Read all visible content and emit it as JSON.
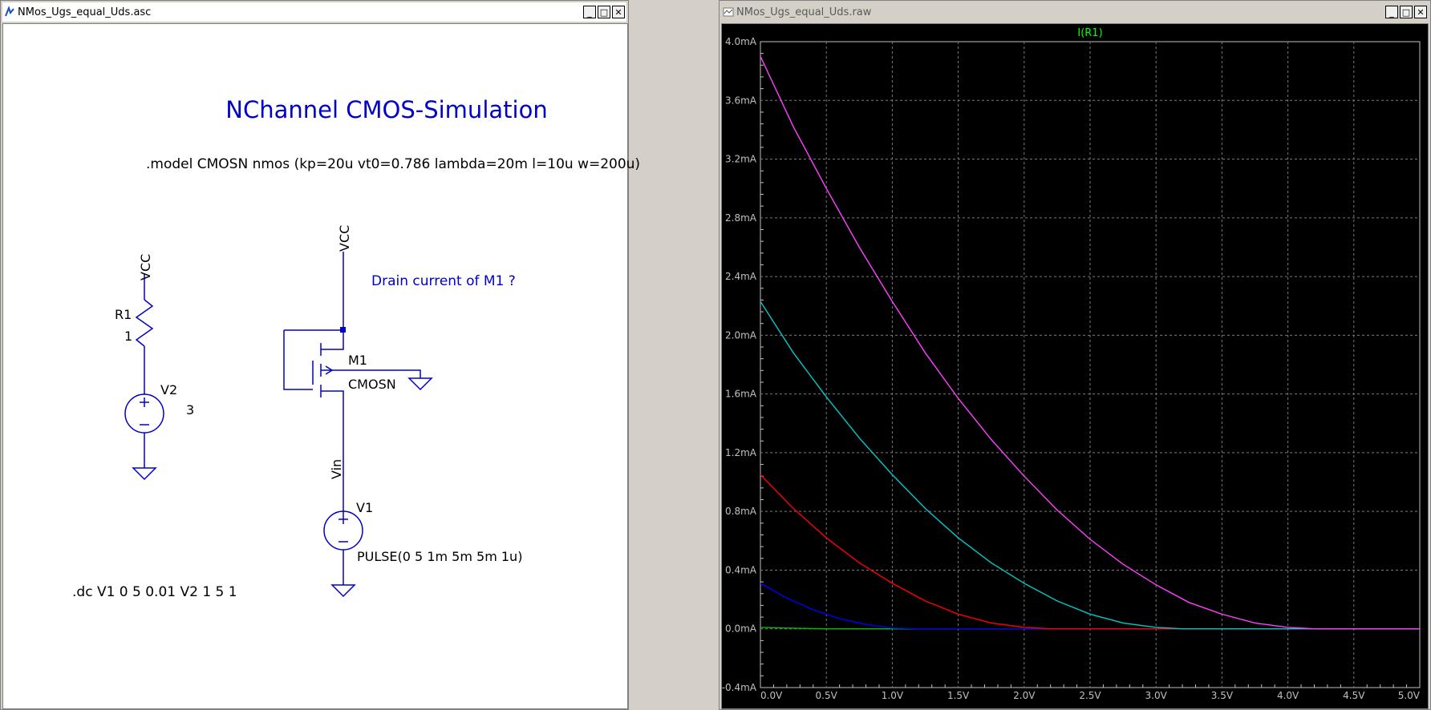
{
  "schematic_window": {
    "title": "NMos_Ugs_equal_Uds.asc",
    "icon": "ltspice-schematic-icon",
    "buttons": {
      "minimize": "_",
      "maximize": "□",
      "close": "✕"
    },
    "heading": "NChannel CMOS-Simulation",
    "model_directive": ".model CMOSN nmos (kp=20u vt0=0.786 lambda=20m l=10u w=200u)",
    "question_text": "Drain current of M1 ?",
    "dc_directive": ".dc V1 0 5 0.01 V2 1 5 1",
    "left_vcc_label": "VCC",
    "r1_name": "R1",
    "r1_value": "1",
    "v2_name": "V2",
    "v2_value": "3",
    "right_vcc_label": "VCC",
    "m1_name": "M1",
    "m1_model": "CMOSN",
    "vin_label": "Vin",
    "v1_name": "V1",
    "v1_value": "PULSE(0 5 1m 5m 5m 1u)",
    "colors": {
      "wire": "#0000c8",
      "heading": "#0000c8",
      "text": "#000000"
    }
  },
  "plot_window": {
    "title": "NMos_Ugs_equal_Uds.raw",
    "icon": "waveform-icon",
    "buttons": {
      "minimize": "_",
      "maximize": "□",
      "close": "✕"
    }
  },
  "chart_data": {
    "type": "line",
    "trace_label": "I(R1)",
    "trace_label_color": "#00ff00",
    "x_ticks": [
      "0.0V",
      "0.5V",
      "1.0V",
      "1.5V",
      "2.0V",
      "2.5V",
      "3.0V",
      "3.5V",
      "4.0V",
      "4.5V",
      "5.0V"
    ],
    "y_ticks": [
      "4.0mA",
      "3.6mA",
      "3.2mA",
      "2.8mA",
      "2.4mA",
      "2.0mA",
      "1.6mA",
      "1.2mA",
      "0.8mA",
      "0.4mA",
      "0.0mA",
      "-0.4mA"
    ],
    "xlim": [
      0,
      5
    ],
    "ylim": [
      -0.4,
      4.0
    ],
    "x_unit": "V",
    "y_unit": "mA",
    "grid": true,
    "background": "#000000",
    "series": [
      {
        "color": "#00c000",
        "x": [
          0.0,
          0.2,
          0.5,
          1.0,
          1.5,
          2.0,
          5.0
        ],
        "y": [
          0.01,
          0.005,
          0.0,
          0.0,
          0.0,
          0.0,
          0.0
        ]
      },
      {
        "color": "#0000ff",
        "x": [
          0.0,
          0.2,
          0.4,
          0.6,
          0.8,
          1.0,
          1.2,
          2.0,
          5.0
        ],
        "y": [
          0.31,
          0.21,
          0.13,
          0.07,
          0.03,
          0.005,
          0.0,
          0.0,
          0.0
        ]
      },
      {
        "color": "#ff0000",
        "x": [
          0.0,
          0.25,
          0.5,
          0.75,
          1.0,
          1.25,
          1.5,
          1.75,
          2.0,
          2.2,
          5.0
        ],
        "y": [
          1.05,
          0.82,
          0.62,
          0.45,
          0.31,
          0.19,
          0.1,
          0.04,
          0.01,
          0.0,
          0.0
        ]
      },
      {
        "color": "#00c8c8",
        "x": [
          0.0,
          0.25,
          0.5,
          0.75,
          1.0,
          1.25,
          1.5,
          1.75,
          2.0,
          2.25,
          2.5,
          2.75,
          3.0,
          3.2,
          5.0
        ],
        "y": [
          2.23,
          1.88,
          1.58,
          1.3,
          1.05,
          0.82,
          0.62,
          0.45,
          0.31,
          0.19,
          0.1,
          0.04,
          0.01,
          0.0,
          0.0
        ]
      },
      {
        "color": "#ff40ff",
        "x": [
          0.0,
          0.25,
          0.5,
          0.75,
          1.0,
          1.25,
          1.5,
          1.75,
          2.0,
          2.25,
          2.5,
          2.75,
          3.0,
          3.25,
          3.5,
          3.75,
          4.0,
          4.2,
          5.0
        ],
        "y": [
          3.9,
          3.42,
          3.0,
          2.6,
          2.23,
          1.88,
          1.57,
          1.29,
          1.04,
          0.81,
          0.61,
          0.44,
          0.3,
          0.18,
          0.1,
          0.04,
          0.01,
          0.0,
          0.0
        ]
      }
    ]
  }
}
